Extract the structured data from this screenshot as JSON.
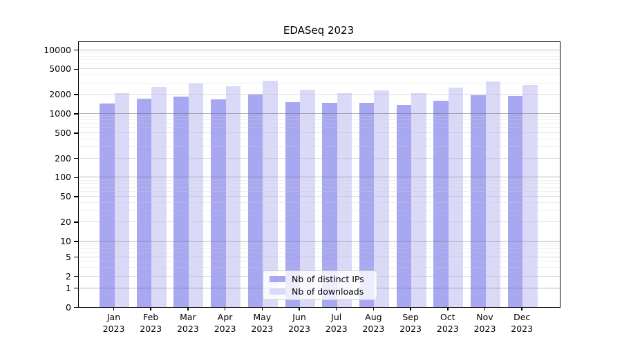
{
  "chart_data": {
    "type": "bar",
    "title": "EDASeq 2023",
    "categories": [
      "Jan 2023",
      "Feb 2023",
      "Mar 2023",
      "Apr 2023",
      "May 2023",
      "Jun 2023",
      "Jul 2023",
      "Aug 2023",
      "Sep 2023",
      "Oct 2023",
      "Nov 2023",
      "Dec 2023"
    ],
    "series": [
      {
        "name": "Nb of distinct IPs",
        "color": "#a7a7f2",
        "values": [
          1430,
          1720,
          1830,
          1680,
          2000,
          1520,
          1490,
          1470,
          1380,
          1600,
          1920,
          1890
        ]
      },
      {
        "name": "Nb of downloads",
        "color": "#dadaf8",
        "values": [
          2090,
          2590,
          2960,
          2700,
          3260,
          2340,
          2080,
          2330,
          2080,
          2550,
          3150,
          2830
        ]
      }
    ],
    "xlabel": "",
    "ylabel": "",
    "y_ticks": [
      0,
      1,
      2,
      5,
      10,
      20,
      50,
      100,
      200,
      500,
      1000,
      2000,
      5000,
      10000
    ],
    "y_scale": "log-like (compressed linear region below 10, zero baseline shown)",
    "ylim": [
      0,
      13200
    ],
    "grid": "horizontal major and minor gridlines, drawn over bars",
    "legend_position": "lower center inside plot"
  }
}
